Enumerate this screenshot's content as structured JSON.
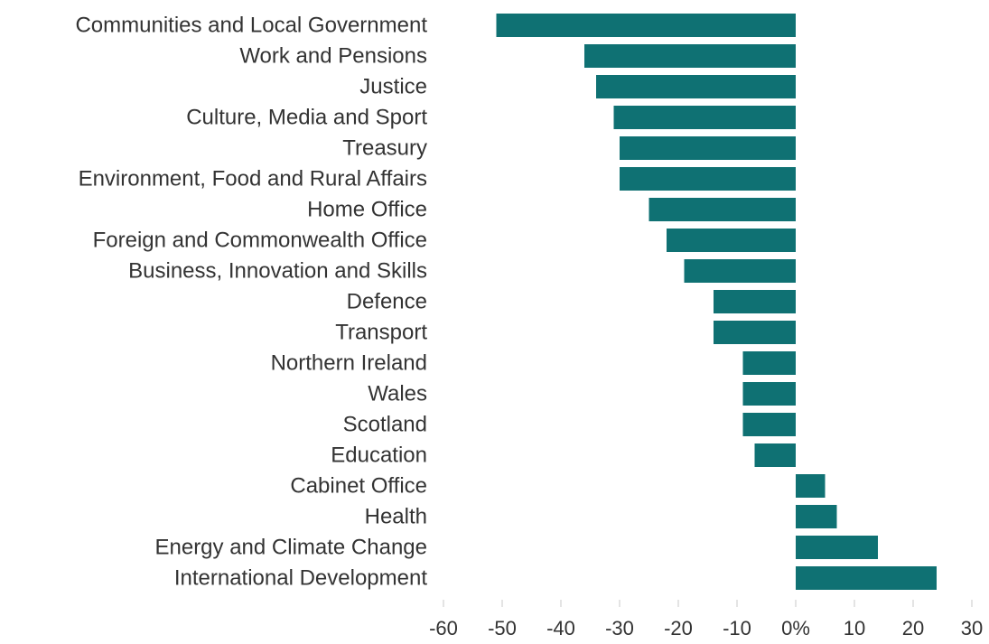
{
  "chart_data": {
    "type": "bar",
    "orientation": "horizontal",
    "categories": [
      "Communities and Local Government",
      "Work and Pensions",
      "Justice",
      "Culture, Media and Sport",
      "Treasury",
      "Environment, Food and Rural Affairs",
      "Home Office",
      "Foreign and Commonwealth Office",
      "Business, Innovation and Skills",
      "Defence",
      "Transport",
      "Northern Ireland",
      "Wales",
      "Scotland",
      "Education",
      "Cabinet Office",
      "Health",
      "Energy and Climate Change",
      "International Development"
    ],
    "values": [
      -51,
      -36,
      -34,
      -31,
      -30,
      -30,
      -25,
      -22,
      -19,
      -14,
      -14,
      -9,
      -9,
      -9,
      -7,
      5,
      7,
      14,
      24
    ],
    "xlim": [
      -60,
      30
    ],
    "xticks": [
      -60,
      -50,
      -40,
      -30,
      -20,
      -10,
      0,
      10,
      20,
      30
    ],
    "xtick_labels": [
      "-60",
      "-50",
      "-40",
      "-30",
      "-20",
      "-10",
      "0%",
      "10",
      "20",
      "30"
    ],
    "title": "",
    "xlabel": "",
    "ylabel": "",
    "grid": false,
    "legend": "none",
    "bar_color": "#0f7173"
  }
}
